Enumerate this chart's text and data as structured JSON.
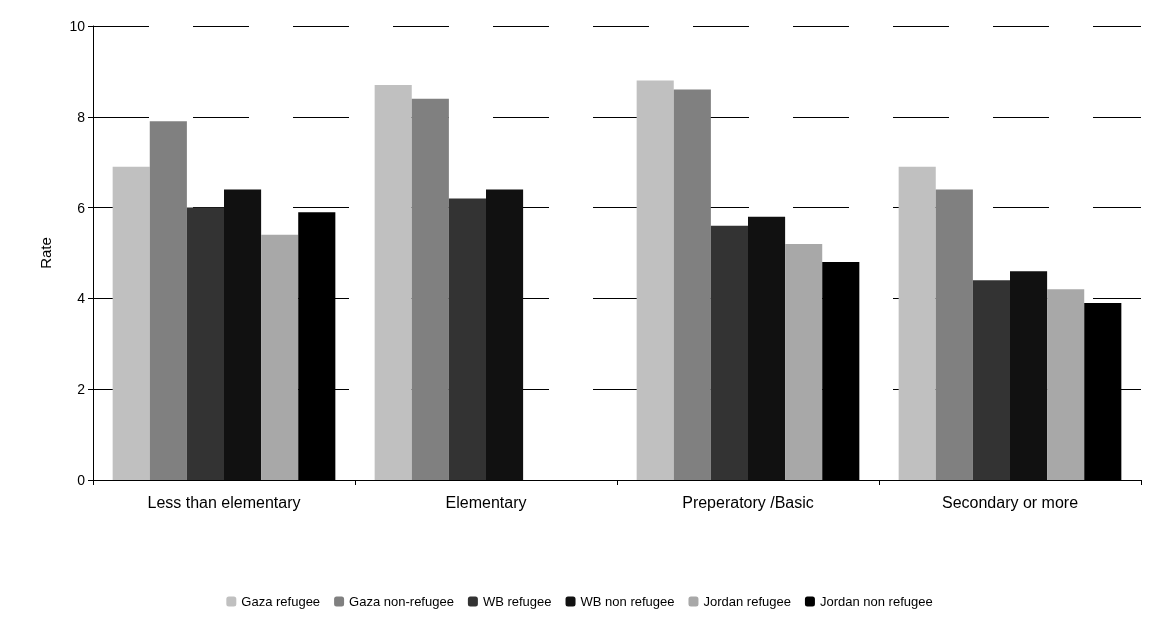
{
  "chart_data": {
    "type": "bar",
    "ylabel": "Rate",
    "categories": [
      "Less than elementary",
      "Elementary",
      "Preperatory /Basic",
      "Secondary or more"
    ],
    "series": [
      {
        "name": "Gaza refugee",
        "color": "#c0c0c0",
        "values": [
          6.9,
          8.7,
          8.8,
          6.9
        ]
      },
      {
        "name": "Gaza non-refugee",
        "color": "#808080",
        "values": [
          7.9,
          8.4,
          8.6,
          6.4
        ]
      },
      {
        "name": "WB refugee",
        "color": "#333333",
        "values": [
          6.0,
          6.2,
          5.6,
          4.4
        ]
      },
      {
        "name": "WB non refugee",
        "color": "#111111",
        "values": [
          6.4,
          6.4,
          5.8,
          4.6
        ]
      },
      {
        "name": "Jordan refugee",
        "color": "#a8a8a8",
        "values": [
          5.4,
          null,
          5.2,
          4.2
        ]
      },
      {
        "name": "Jordan non refugee",
        "color": "#000000",
        "values": [
          5.9,
          null,
          4.8,
          3.9
        ]
      }
    ],
    "ylim": [
      0,
      10
    ],
    "yticks": [
      0,
      2,
      4,
      6,
      8,
      10
    ],
    "grid": "y",
    "legend": "bottom"
  }
}
